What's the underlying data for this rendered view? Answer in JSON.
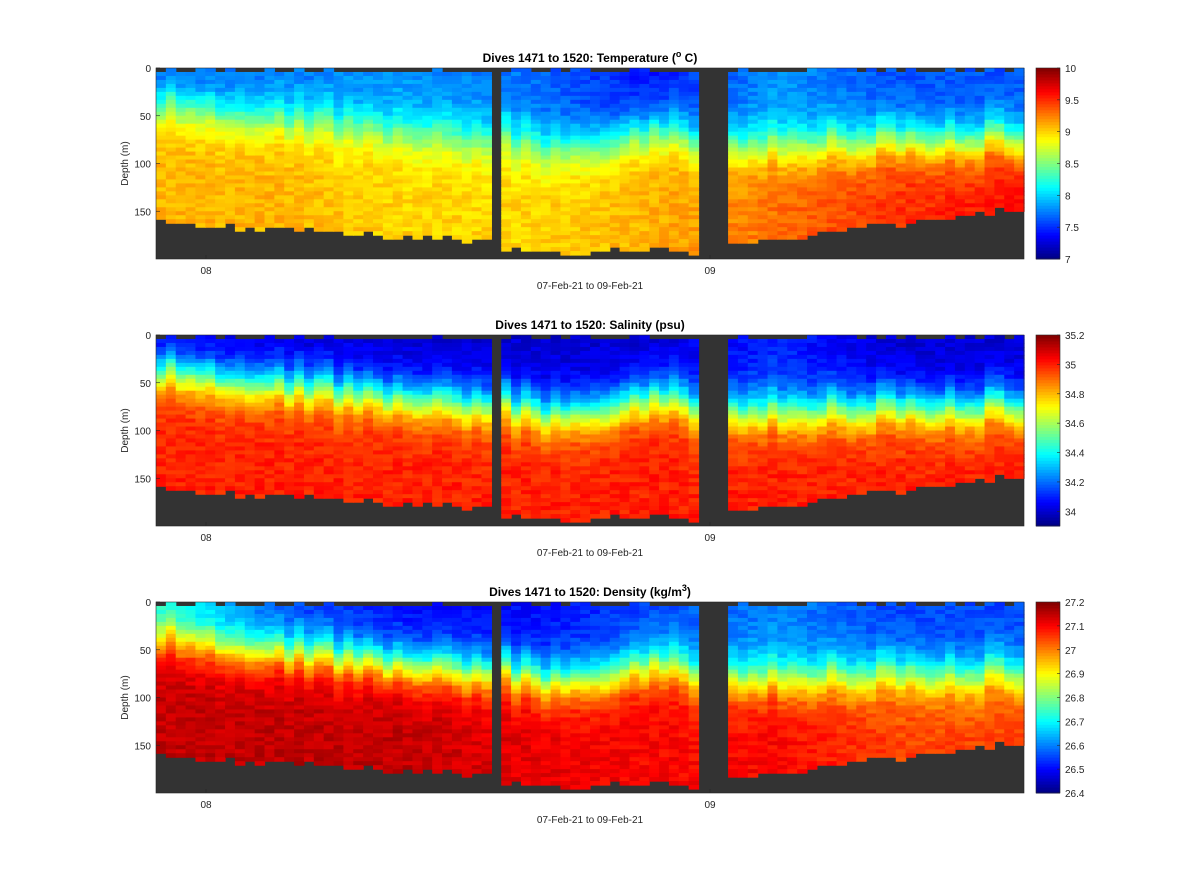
{
  "figure": {
    "background": "#ffffff",
    "seafloor_color": "#333333"
  },
  "chart_data": [
    {
      "type": "heatmap",
      "variable": "temperature",
      "title": "Dives 1471 to 1520: Temperature (",
      "title_sup": "o",
      "title_end": " C)",
      "xlabel": "07-Feb-21 to 09-Feb-21",
      "ylabel": "Depth (m)",
      "x_ticks": [
        "08",
        "09"
      ],
      "y_ticks": [
        0,
        50,
        100,
        150
      ],
      "ylim": [
        0,
        200
      ],
      "colorbar": {
        "colormap": "jet",
        "range": [
          7,
          10
        ],
        "ticks": [
          "7",
          "7.5",
          "8",
          "8.5",
          "9",
          "9.5",
          "10"
        ]
      },
      "gaps": [
        "between dive groups 1 and 2",
        "between dive groups 2 and 3"
      ],
      "profile": {
        "surface": [
          7.6,
          7.7,
          7.8,
          7.7,
          7.4,
          7.8,
          7.6,
          7.6
        ],
        "deep": [
          9.1,
          9.1,
          9.0,
          9.0,
          9.1,
          9.3,
          9.5,
          9.6
        ]
      }
    },
    {
      "type": "heatmap",
      "variable": "salinity",
      "title": "Dives 1471 to 1520: Salinity (psu)",
      "xlabel": "07-Feb-21 to 09-Feb-21",
      "ylabel": "Depth (m)",
      "x_ticks": [
        "08",
        "09"
      ],
      "y_ticks": [
        0,
        50,
        100,
        150
      ],
      "ylim": [
        0,
        200
      ],
      "colorbar": {
        "colormap": "jet",
        "range": [
          33.9,
          35.2
        ],
        "ticks": [
          "34",
          "34.2",
          "34.4",
          "34.6",
          "34.8",
          "35",
          "35.2"
        ]
      },
      "profile": {
        "surface": [
          34.0,
          34.0,
          34.0,
          34.0,
          34.0,
          34.1,
          34.0,
          34.0
        ],
        "deep": [
          35.0,
          35.0,
          35.0,
          35.0,
          35.0,
          35.0,
          35.0,
          35.0
        ]
      }
    },
    {
      "type": "heatmap",
      "variable": "density",
      "title": "Dives 1471 to 1520: Density (kg/m",
      "title_sup": "3",
      "title_end": ")",
      "xlabel": "07-Feb-21 to 09-Feb-21",
      "ylabel": "Depth (m)",
      "x_ticks": [
        "08",
        "09"
      ],
      "y_ticks": [
        0,
        50,
        100,
        150
      ],
      "ylim": [
        0,
        200
      ],
      "colorbar": {
        "colormap": "jet",
        "range": [
          26.4,
          27.2
        ],
        "ticks": [
          "26.4",
          "26.5",
          "26.6",
          "26.7",
          "26.8",
          "26.9",
          "27",
          "27.1",
          "27.2"
        ]
      },
      "profile": {
        "surface": [
          26.7,
          26.55,
          26.5,
          26.5,
          26.55,
          26.6,
          26.55,
          26.55
        ],
        "deep": [
          27.15,
          27.15,
          27.15,
          27.12,
          27.1,
          27.1,
          27.05,
          27.05
        ]
      }
    }
  ]
}
